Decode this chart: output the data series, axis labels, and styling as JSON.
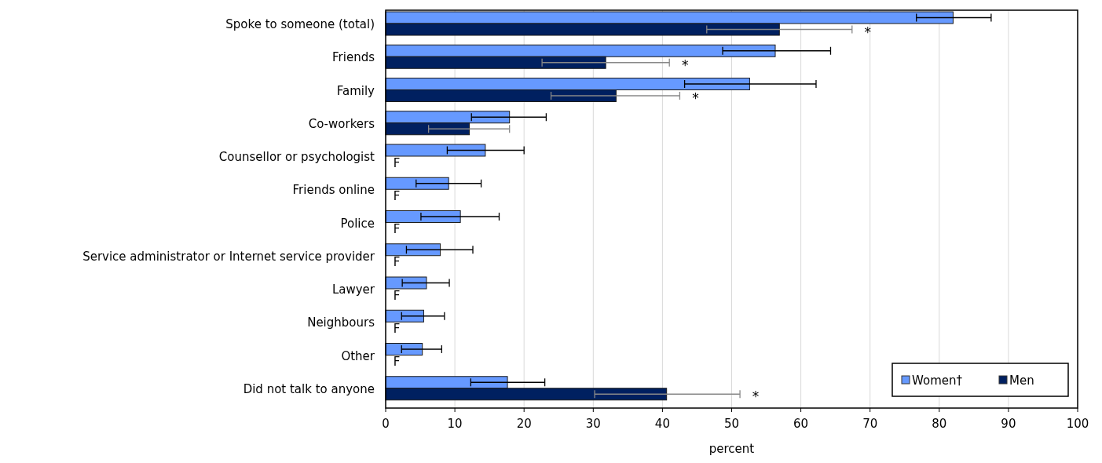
{
  "chart_data": {
    "type": "bar",
    "orientation": "horizontal",
    "xlabel": "percent",
    "categories": [
      "Spoke to someone (total)",
      "Friends",
      "Family",
      "Co-workers",
      "Counsellor or psychologist",
      "Friends online",
      "Police",
      "Service administrator or Internet service provider",
      "Lawyer",
      "Neighbours",
      "Other",
      "Did not talk to anyone"
    ],
    "series": [
      {
        "name": "Women†",
        "color": "#6699ff",
        "values": [
          82.0,
          56.3,
          52.6,
          17.9,
          14.4,
          9.1,
          10.8,
          7.9,
          5.9,
          5.5,
          5.3,
          17.6
        ],
        "errors": [
          [
            76.7,
            87.5
          ],
          [
            48.7,
            64.3
          ],
          [
            43.2,
            62.2
          ],
          [
            12.4,
            23.2
          ],
          [
            8.9,
            20.0
          ],
          [
            4.4,
            13.8
          ],
          [
            5.1,
            16.4
          ],
          [
            3.0,
            12.6
          ],
          [
            2.4,
            9.2
          ],
          [
            2.3,
            8.5
          ],
          [
            2.3,
            8.1
          ],
          [
            12.3,
            23.0
          ]
        ]
      },
      {
        "name": "Men",
        "color": "#002060",
        "values": [
          56.9,
          31.8,
          33.3,
          12.1,
          null,
          null,
          null,
          null,
          null,
          null,
          null,
          40.6
        ],
        "errors": [
          [
            46.4,
            67.4
          ],
          [
            22.6,
            41.0
          ],
          [
            23.9,
            42.5
          ],
          [
            6.2,
            17.9
          ],
          null,
          null,
          null,
          null,
          null,
          null,
          null,
          [
            30.2,
            51.2
          ]
        ],
        "value_labels": [
          null,
          null,
          null,
          null,
          "F",
          "F",
          "F",
          "F",
          "F",
          "F",
          "F",
          null
        ]
      }
    ],
    "annotations": [
      {
        "text": "*",
        "x": 67.4,
        "y": "Spoke to someone (total)"
      },
      {
        "text": "*",
        "x": 41.0,
        "y": "Friends"
      },
      {
        "text": "*",
        "x": 42.5,
        "y": "Family"
      },
      {
        "text": "*",
        "x": 51.2,
        "y": "Did not talk to anyone"
      }
    ],
    "xlim": [
      0,
      100
    ],
    "xticks": [
      0,
      10,
      20,
      30,
      40,
      50,
      60,
      70,
      80,
      90,
      100
    ],
    "grid": "x",
    "legend": "bottom right"
  }
}
